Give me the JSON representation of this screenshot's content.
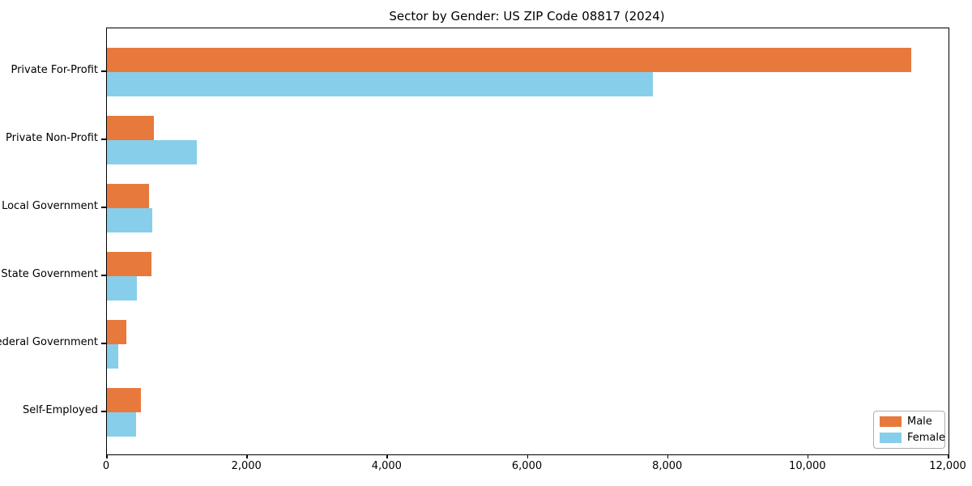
{
  "chart_data": {
    "type": "bar",
    "orientation": "horizontal",
    "title": "Sector by Gender: US ZIP Code 08817 (2024)",
    "categories": [
      "Private For-Profit",
      "Private Non-Profit",
      "Local Government",
      "State Government",
      "Federal Government",
      "Self-Employed"
    ],
    "series": [
      {
        "name": "Male",
        "color": "#e8793d",
        "values": [
          11470,
          670,
          600,
          640,
          280,
          490
        ]
      },
      {
        "name": "Female",
        "color": "#87ceeb",
        "values": [
          7780,
          1280,
          650,
          430,
          160,
          420
        ]
      }
    ],
    "xlabel": "",
    "ylabel": "",
    "xlim": [
      0,
      12000
    ],
    "xticks": [
      0,
      2000,
      4000,
      6000,
      8000,
      10000,
      12000
    ],
    "grid": false,
    "legend_position": "lower right"
  }
}
